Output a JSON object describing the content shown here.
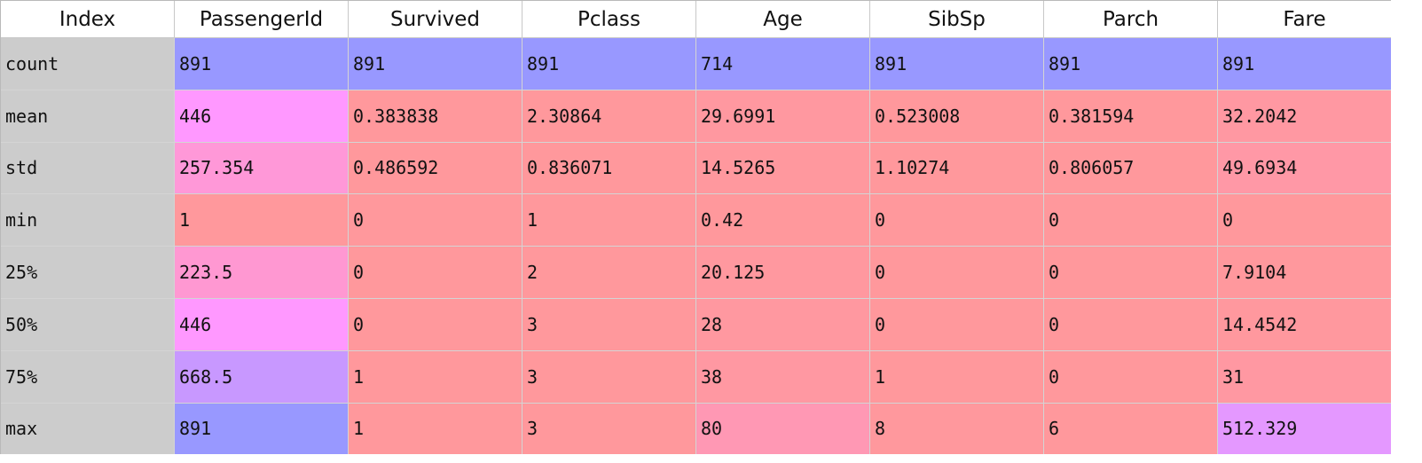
{
  "table": {
    "columns": [
      "Index",
      "PassengerId",
      "Survived",
      "Pclass",
      "Age",
      "SibSp",
      "Parch",
      "Fare"
    ],
    "rows": [
      {
        "index": "count",
        "values": [
          "891",
          "891",
          "891",
          "714",
          "891",
          "891",
          "891"
        ],
        "colors": [
          "#9898ff",
          "#9898ff",
          "#9898ff",
          "#9898ff",
          "#9898ff",
          "#9898ff",
          "#9898ff"
        ]
      },
      {
        "index": "mean",
        "values": [
          "446",
          "0.383838",
          "2.30864",
          "29.6991",
          "0.523008",
          "0.381594",
          "32.2042"
        ],
        "colors": [
          "#ff98ff",
          "#ff989c",
          "#ff989c",
          "#ff98a0",
          "#ff989c",
          "#ff989c",
          "#ff98a2"
        ]
      },
      {
        "index": "std",
        "values": [
          "257.354",
          "0.486592",
          "0.836071",
          "14.5265",
          "1.10274",
          "0.806057",
          "49.6934"
        ],
        "colors": [
          "#ff98d8",
          "#ff989c",
          "#ff989c",
          "#ff989e",
          "#ff989c",
          "#ff989c",
          "#ff98a6"
        ]
      },
      {
        "index": "min",
        "values": [
          "1",
          "0",
          "1",
          "0.42",
          "0",
          "0",
          "0"
        ],
        "colors": [
          "#ff989c",
          "#ff989c",
          "#ff989c",
          "#ff989c",
          "#ff989c",
          "#ff989c",
          "#ff989c"
        ]
      },
      {
        "index": "25%",
        "values": [
          "223.5",
          "0",
          "2",
          "20.125",
          "0",
          "0",
          "7.9104"
        ],
        "colors": [
          "#ff98d2",
          "#ff989c",
          "#ff989c",
          "#ff989f",
          "#ff989c",
          "#ff989c",
          "#ff989d"
        ]
      },
      {
        "index": "50%",
        "values": [
          "446",
          "0",
          "3",
          "28",
          "0",
          "0",
          "14.4542"
        ],
        "colors": [
          "#ff98ff",
          "#ff989c",
          "#ff989c",
          "#ff98a0",
          "#ff989c",
          "#ff989c",
          "#ff989e"
        ]
      },
      {
        "index": "75%",
        "values": [
          "668.5",
          "1",
          "3",
          "38",
          "1",
          "0",
          "31"
        ],
        "colors": [
          "#c898ff",
          "#ff989c",
          "#ff989c",
          "#ff98a2",
          "#ff989c",
          "#ff989c",
          "#ff98a2"
        ]
      },
      {
        "index": "max",
        "values": [
          "891",
          "1",
          "3",
          "80",
          "8",
          "6",
          "512.329"
        ],
        "colors": [
          "#9898ff",
          "#ff989c",
          "#ff989c",
          "#ff98b4",
          "#ff989d",
          "#ff989c",
          "#e498ff"
        ]
      }
    ],
    "index_color": "#cccccc",
    "header_background": "#ffffff"
  }
}
